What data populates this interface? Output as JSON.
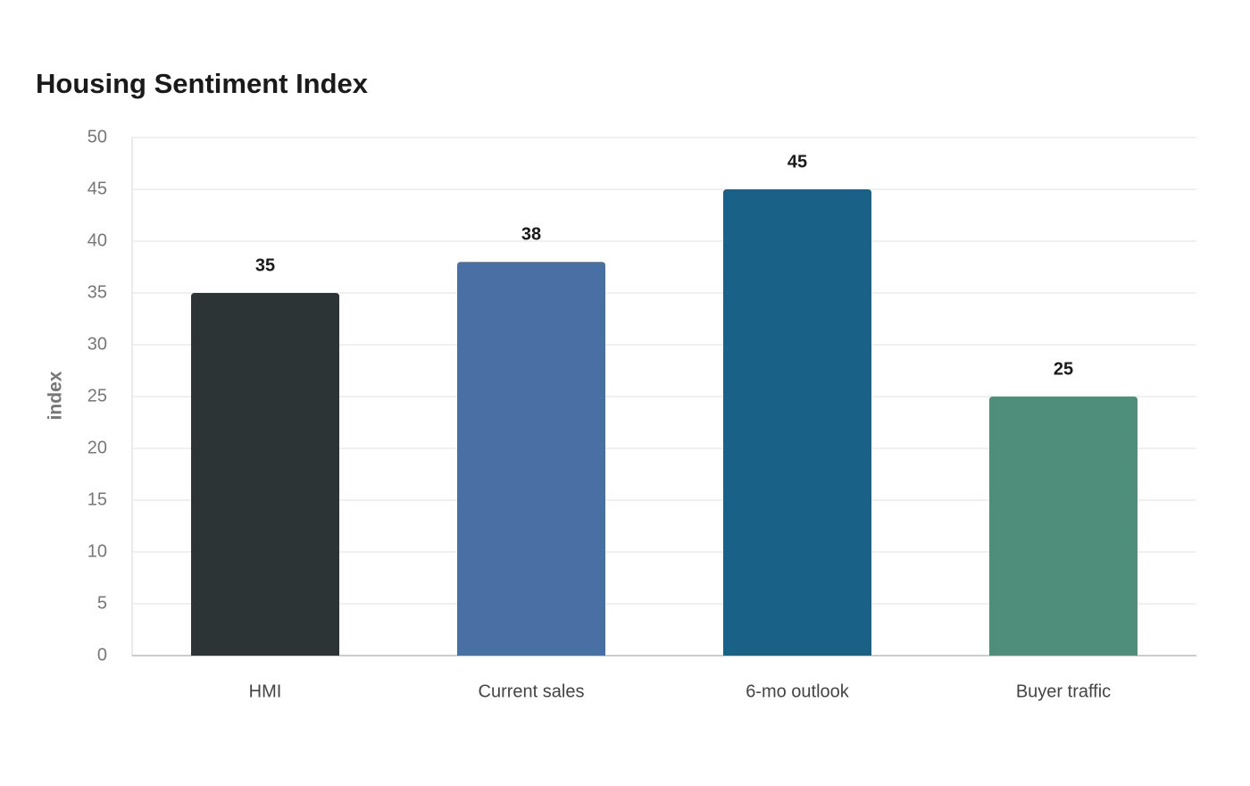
{
  "chart_data": {
    "type": "bar",
    "title": "Housing Sentiment Index",
    "y_label": "index",
    "categories": [
      "HMI",
      "Current sales",
      "6-mo outlook",
      "Buyer traffic"
    ],
    "values": [
      35,
      38,
      45,
      25
    ],
    "colors": [
      "#2d3436",
      "#4a6fa5",
      "#196187",
      "#4f8e7b"
    ],
    "ylim": [
      0,
      50
    ],
    "yticks": [
      0,
      5,
      10,
      15,
      20,
      25,
      30,
      35,
      40,
      45,
      50
    ],
    "grid": true
  }
}
